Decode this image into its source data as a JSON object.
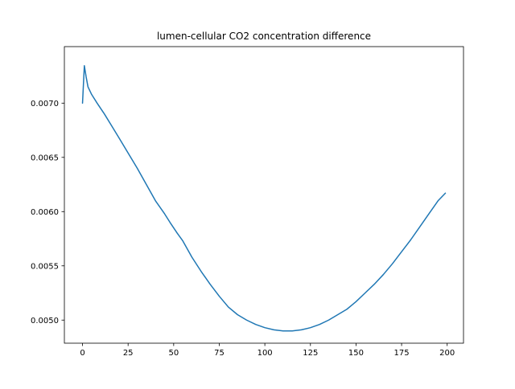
{
  "chart_data": {
    "type": "line",
    "title": "lumen-cellular CO2 concentration difference",
    "xlabel": "",
    "ylabel": "",
    "xlim": [
      -9.95,
      208.95
    ],
    "ylim": [
      0.004787,
      0.007521
    ],
    "xticks": [
      0,
      25,
      50,
      75,
      100,
      125,
      150,
      175,
      200
    ],
    "yticks": [
      0.005,
      0.0055,
      0.006,
      0.0065,
      0.007
    ],
    "xtick_labels": [
      "0",
      "25",
      "50",
      "75",
      "100",
      "125",
      "150",
      "175",
      "200"
    ],
    "ytick_labels": [
      "0.0050",
      "0.0055",
      "0.0060",
      "0.0065",
      "0.0070"
    ],
    "grid": false,
    "legend": "none",
    "series": [
      {
        "color": "#1f77b4",
        "x": [
          0,
          1,
          2,
          3,
          5,
          8,
          12,
          16,
          20,
          25,
          30,
          35,
          40,
          45,
          48,
          50,
          52,
          55,
          60,
          65,
          70,
          75,
          80,
          85,
          90,
          95,
          100,
          105,
          110,
          115,
          120,
          125,
          130,
          135,
          140,
          145,
          150,
          155,
          160,
          165,
          170,
          175,
          180,
          185,
          190,
          195,
          199
        ],
        "y": [
          0.007,
          0.007345,
          0.00724,
          0.00715,
          0.00708,
          0.007,
          0.0069,
          0.00679,
          0.00668,
          0.00654,
          0.0064,
          0.00625,
          0.0061,
          0.00598,
          0.0059,
          0.00585,
          0.0058,
          0.00573,
          0.00558,
          0.00545,
          0.00533,
          0.00522,
          0.00512,
          0.00505,
          0.005,
          0.00496,
          0.00493,
          0.00491,
          0.0049,
          0.0049,
          0.00491,
          0.00493,
          0.00496,
          0.005,
          0.00505,
          0.0051,
          0.00517,
          0.00525,
          0.00533,
          0.00542,
          0.00552,
          0.00563,
          0.00574,
          0.00586,
          0.00598,
          0.0061,
          0.00617
        ]
      }
    ]
  }
}
